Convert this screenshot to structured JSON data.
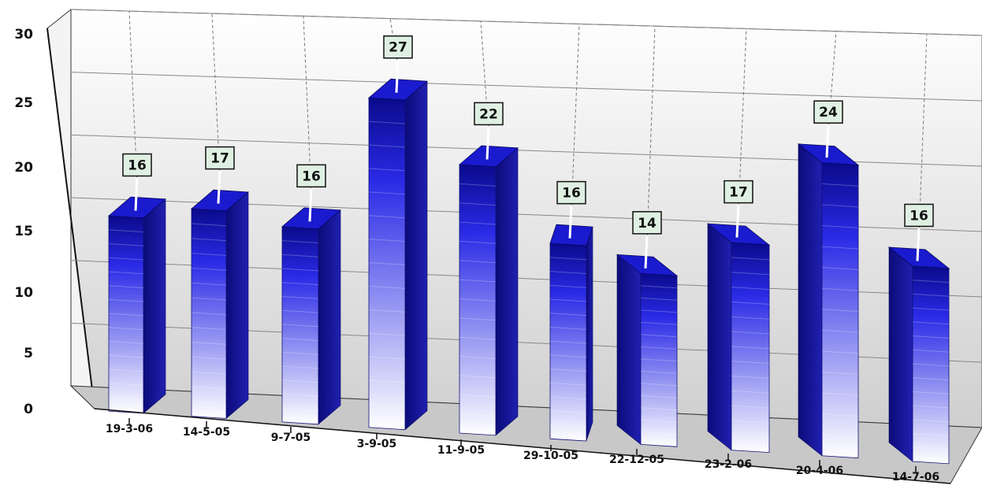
{
  "chart_data": {
    "type": "bar",
    "categories": [
      "19-3-06",
      "14-5-05",
      "9-7-05",
      "3-9-05",
      "11-9-05",
      "29-10-05",
      "22-12-05",
      "23-2-06",
      "20-4-06",
      "14-7-06"
    ],
    "values": [
      16,
      17,
      16,
      27,
      22,
      16,
      14,
      17,
      24,
      16
    ],
    "data_labels": [
      "16",
      "17",
      "16",
      "27",
      "22",
      "16",
      "14",
      "17",
      "24",
      "16"
    ],
    "title": "",
    "xlabel": "",
    "ylabel": "",
    "ylim": [
      0,
      30
    ],
    "yticks": [
      "0",
      "5",
      "10",
      "15",
      "20",
      "25",
      "30"
    ],
    "style": "3d-perspective",
    "grid": true,
    "legend": "none",
    "colors": {
      "bar_dark": "#0a0a8c",
      "bar_mid": "#2a2ae6",
      "bar_light": "#ffffff",
      "bar_top": "#1a1acf",
      "bar_side": "#0b0b7a",
      "label_fill": "#dff0e2",
      "floor": "#c8c8c8",
      "gridline": "#888888"
    }
  }
}
